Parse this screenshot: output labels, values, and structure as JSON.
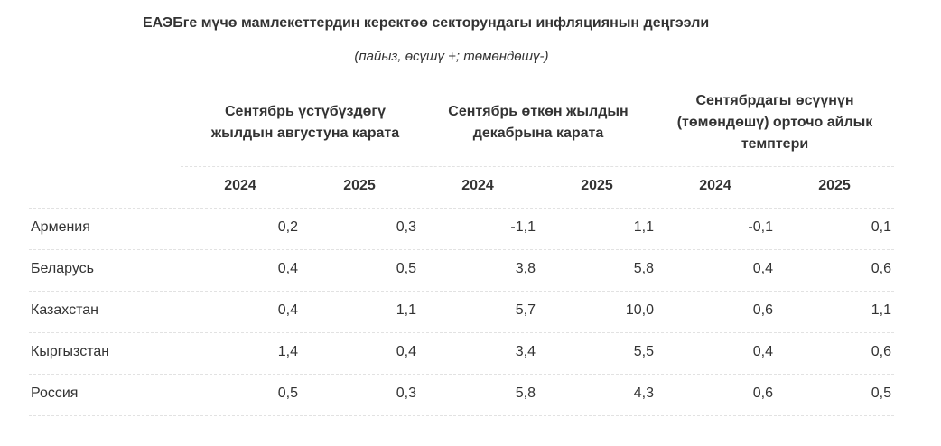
{
  "title": "ЕАЭБге мүчө мамлекеттердин керектөө секторундагы инфляциянын деңгээли",
  "subtitle": "(пайыз, өсүшү +; төмөндөшү-)",
  "column_groups": [
    {
      "line1": "Сентябрь үстүбүздөгү",
      "line2": "жылдын августуна карата",
      "line3": ""
    },
    {
      "line1": "Сентябрь өткөн жылдын",
      "line2": "декабрына карата",
      "line3": ""
    },
    {
      "line1": "Сентябрдагы өсүүнүн",
      "line2": "(төмөндөшү) орточо айлык",
      "line3": "темптери"
    }
  ],
  "years": [
    "2024",
    "2025",
    "2024",
    "2025",
    "2024",
    "2025"
  ],
  "rows": [
    {
      "country": "Армения",
      "values": [
        "0,2",
        "0,3",
        "-1,1",
        "1,1",
        "-0,1",
        "0,1"
      ]
    },
    {
      "country": "Беларусь",
      "values": [
        "0,4",
        "0,5",
        "3,8",
        "5,8",
        "0,4",
        "0,6"
      ]
    },
    {
      "country": "Казахстан",
      "values": [
        "0,4",
        "1,1",
        "5,7",
        "10,0",
        "0,6",
        "1,1"
      ]
    },
    {
      "country": "Кыргызстан",
      "values": [
        "1,4",
        "0,4",
        "3,4",
        "5,5",
        "0,4",
        "0,6"
      ]
    },
    {
      "country": "Россия",
      "values": [
        "0,5",
        "0,3",
        "5,8",
        "4,3",
        "0,6",
        "0,5"
      ]
    }
  ]
}
